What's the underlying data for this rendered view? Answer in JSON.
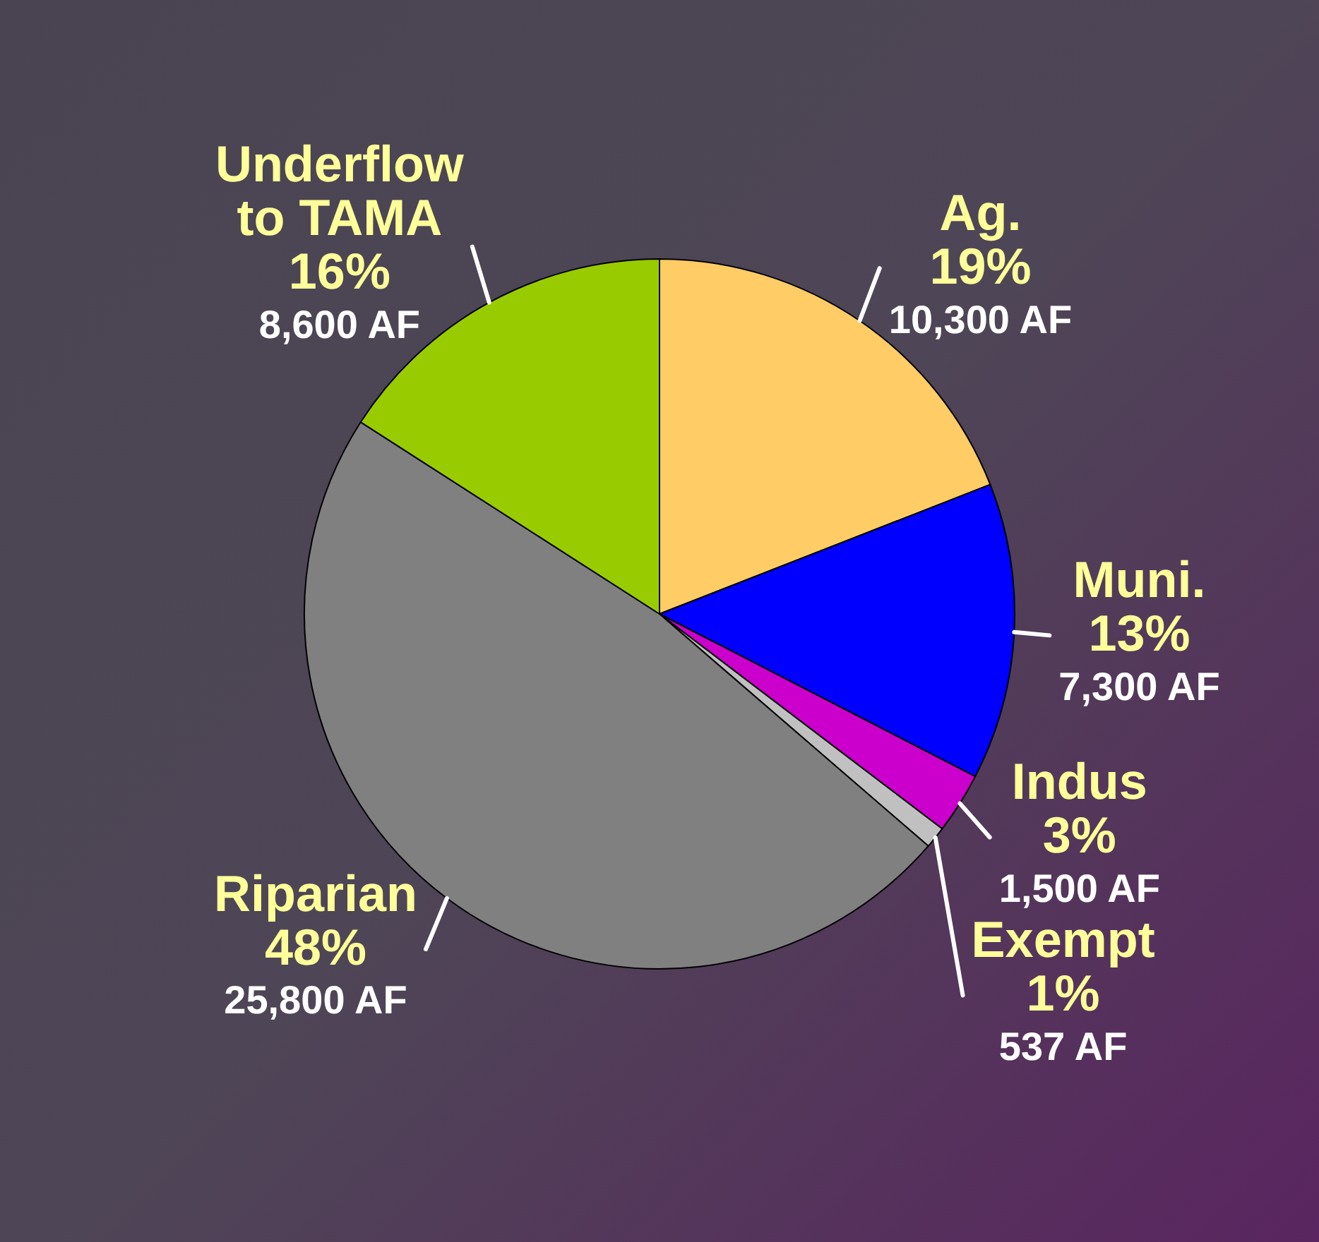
{
  "chart_data": {
    "type": "pie",
    "categories": [
      "Ag.",
      "Muni.",
      "Indus",
      "Exempt",
      "Riparian",
      "Underflow to TAMA"
    ],
    "values": [
      10300,
      7300,
      1500,
      537,
      25800,
      8600
    ],
    "colors": [
      "#ffcc66",
      "#0000ff",
      "#cc00cc",
      "#c0c0c0",
      "#808080",
      "#99cc00"
    ],
    "value_labels": [
      "10,300 AF",
      "7,300 AF",
      "1,500 AF",
      "537 AF",
      "25,800 AF",
      "8,600 AF"
    ],
    "annotations": [
      {
        "text": "19%",
        "x": "Ag."
      },
      {
        "text": "13%",
        "x": "Muni."
      },
      {
        "text": "3%",
        "x": "Indus"
      },
      {
        "text": "1%",
        "x": "Exempt"
      },
      {
        "text": "48%",
        "x": "Riparian"
      },
      {
        "text": "16%",
        "x": "Underflow to TAMA"
      }
    ],
    "legend": false
  }
}
